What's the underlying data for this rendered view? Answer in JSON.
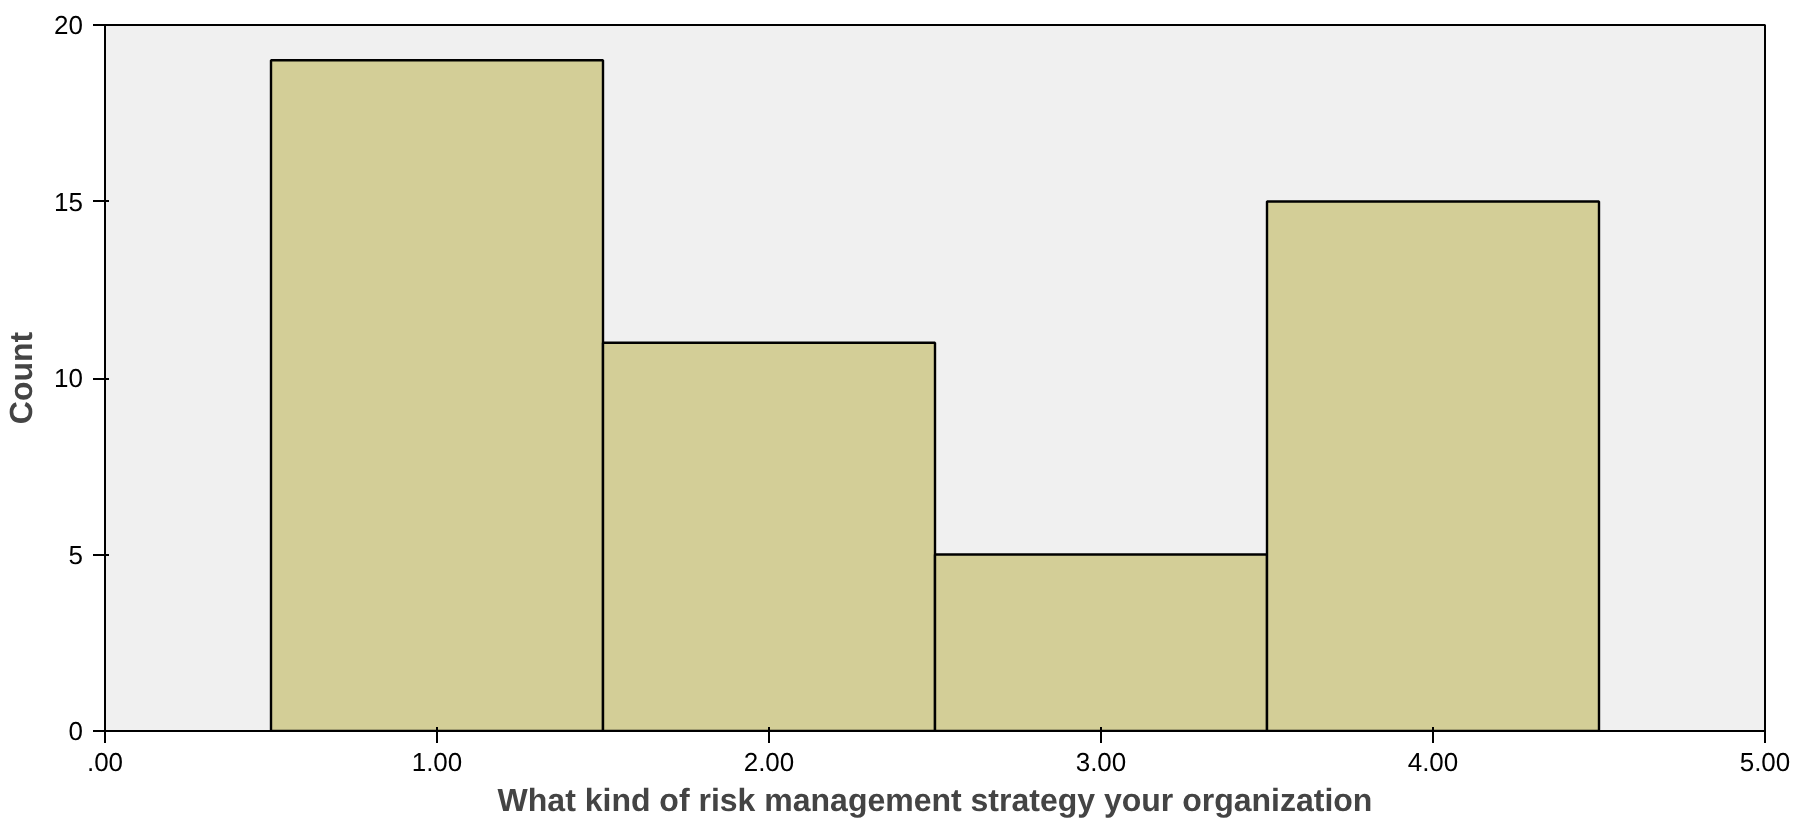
{
  "chart_data": {
    "type": "histogram",
    "xlabel": "What kind of risk management strategy your organization",
    "ylabel": "Count",
    "bins": [
      0.5,
      1.5,
      2.5,
      3.5,
      4.5
    ],
    "values": [
      19,
      11,
      5,
      15
    ],
    "color": "#d3ce97",
    "xlim": [
      0,
      5
    ],
    "xticks": [
      {
        "value": 0,
        "label": ".00"
      },
      {
        "value": 1,
        "label": "1.00"
      },
      {
        "value": 2,
        "label": "2.00"
      },
      {
        "value": 3,
        "label": "3.00"
      },
      {
        "value": 4,
        "label": "4.00"
      },
      {
        "value": 5,
        "label": "5.00"
      }
    ],
    "ylim": [
      0,
      20
    ],
    "yticks": [
      0,
      5,
      10,
      15,
      20
    ],
    "grid": false
  }
}
